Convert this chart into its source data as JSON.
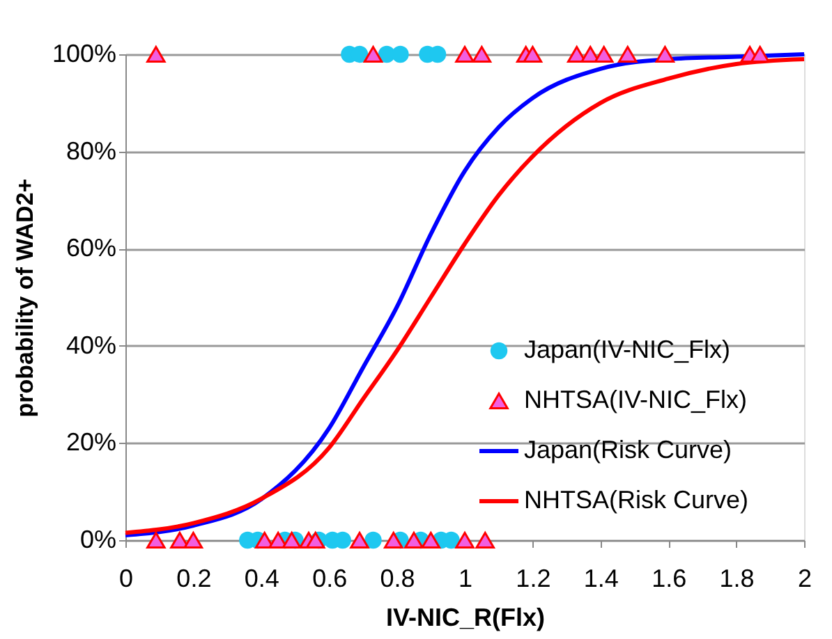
{
  "chart_data": {
    "type": "scatter",
    "xlabel": "IV-NIC_R(Flx)",
    "ylabel": "probability of WAD2+",
    "xlim": [
      0,
      2
    ],
    "xticks": [
      0,
      0.2,
      0.4,
      0.6,
      0.8,
      1,
      1.2,
      1.4,
      1.6,
      1.8,
      2
    ],
    "ylim": [
      0,
      1
    ],
    "yticks": [
      {
        "value": 0,
        "label": "0%"
      },
      {
        "value": 0.2,
        "label": "20%"
      },
      {
        "value": 0.4,
        "label": "40%"
      },
      {
        "value": 0.6,
        "label": "60%"
      },
      {
        "value": 0.8,
        "label": "80%"
      },
      {
        "value": 1,
        "label": "100%"
      }
    ],
    "grid": "y",
    "legend": "bottom right",
    "series": [
      {
        "name": "Japan(IV-NIC_Flx)",
        "marker": "circle",
        "color": "#1ec8f0",
        "x": [
          0.66,
          0.69,
          0.77,
          0.81,
          0.89,
          0.92,
          0.36,
          0.39,
          0.47,
          0.5,
          0.57,
          0.61,
          0.64,
          0.73,
          0.81,
          0.87,
          0.93,
          0.96
        ],
        "values": [
          1,
          1,
          1,
          1,
          1,
          1,
          0,
          0,
          0,
          0,
          0,
          0,
          0,
          0,
          0,
          0,
          0,
          0
        ]
      },
      {
        "name": "NHTSA(IV-NIC_Flx)",
        "marker": "triangle",
        "color": "#f25ee0",
        "x": [
          0.09,
          0.73,
          1.0,
          1.05,
          1.18,
          1.2,
          1.33,
          1.37,
          1.41,
          1.48,
          1.59,
          1.84,
          1.87,
          0.09,
          0.16,
          0.2,
          0.41,
          0.45,
          0.49,
          0.54,
          0.56,
          0.69,
          0.79,
          0.85,
          0.9,
          1.0,
          1.06
        ],
        "values": [
          1,
          1,
          1,
          1,
          1,
          1,
          1,
          1,
          1,
          1,
          1,
          1,
          1,
          0,
          0,
          0,
          0,
          0,
          0,
          0,
          0,
          0,
          0,
          0,
          0,
          0,
          0
        ]
      },
      {
        "name": "Japan(Risk Curve)",
        "type": "line",
        "marker": "none",
        "line_style": "solid",
        "color": "#0000ff",
        "x": [
          0,
          0.2,
          0.4,
          0.6,
          0.7,
          0.8,
          0.9,
          1.0,
          1.1,
          1.2,
          1.4,
          1.6,
          1.8,
          2.0
        ],
        "values": [
          0.01,
          0.03,
          0.084,
          0.23,
          0.355,
          0.48,
          0.63,
          0.76,
          0.85,
          0.91,
          0.97,
          0.99,
          0.995,
          1.0
        ]
      },
      {
        "name": "NHTSA(Risk Curve)",
        "type": "line",
        "marker": "none",
        "line_style": "solid",
        "color": "#ff0000",
        "x": [
          0,
          0.2,
          0.4,
          0.6,
          0.7,
          0.8,
          0.9,
          1.0,
          1.1,
          1.2,
          1.4,
          1.6,
          1.8,
          2.0
        ],
        "values": [
          0.015,
          0.035,
          0.085,
          0.19,
          0.29,
          0.39,
          0.5,
          0.61,
          0.71,
          0.79,
          0.9,
          0.95,
          0.98,
          0.99
        ]
      }
    ]
  }
}
